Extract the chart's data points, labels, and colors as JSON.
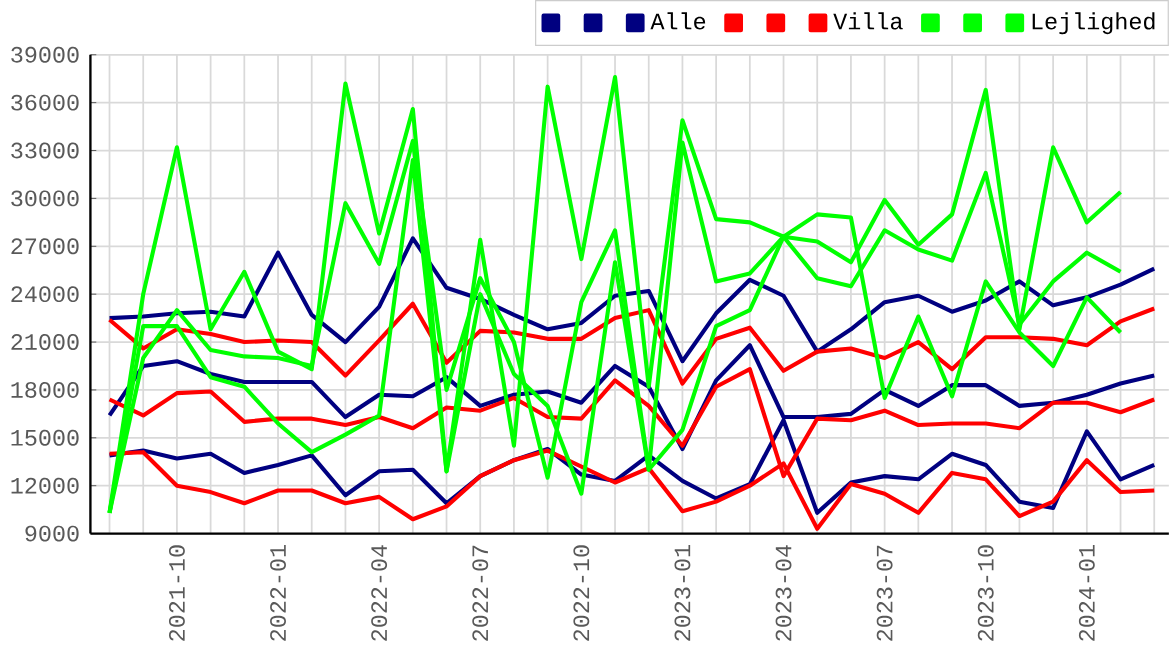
{
  "chart_data": {
    "type": "line",
    "legend": "top right",
    "grid": true,
    "line_style": "solid",
    "marker": "none",
    "x": [
      "2021-08",
      "2021-09",
      "2021-10",
      "2021-11",
      "2021-12",
      "2022-01",
      "2022-02",
      "2022-03",
      "2022-04",
      "2022-05",
      "2022-06",
      "2022-07",
      "2022-08",
      "2022-09",
      "2022-10",
      "2022-11",
      "2022-12",
      "2023-01",
      "2023-02",
      "2023-03",
      "2023-04",
      "2023-05",
      "2023-06",
      "2023-07",
      "2023-08",
      "2023-09",
      "2023-10",
      "2023-11",
      "2023-12",
      "2024-01",
      "2024-02",
      "2024-03"
    ],
    "xlim": [
      "2021-07-14",
      "2024-03-14"
    ],
    "xticks": [
      {
        "value": "2021-08",
        "label": null
      },
      {
        "value": "2021-09",
        "label": null
      },
      "2021-10",
      {
        "value": "2021-11",
        "label": null
      },
      {
        "value": "2021-12",
        "label": null
      },
      "2022-01",
      {
        "value": "2022-02",
        "label": null
      },
      {
        "value": "2022-03",
        "label": null
      },
      "2022-04",
      {
        "value": "2022-05",
        "label": null
      },
      {
        "value": "2022-06",
        "label": null
      },
      "2022-07",
      {
        "value": "2022-08",
        "label": null
      },
      {
        "value": "2022-09",
        "label": null
      },
      "2022-10",
      {
        "value": "2022-11",
        "label": null
      },
      {
        "value": "2022-12",
        "label": null
      },
      "2023-01",
      {
        "value": "2023-02",
        "label": null
      },
      {
        "value": "2023-03",
        "label": null
      },
      "2023-04",
      {
        "value": "2023-05",
        "label": null
      },
      {
        "value": "2023-06",
        "label": null
      },
      "2023-07",
      {
        "value": "2023-08",
        "label": null
      },
      {
        "value": "2023-09",
        "label": null
      },
      "2023-10",
      {
        "value": "2023-11",
        "label": null
      },
      {
        "value": "2023-12",
        "label": null
      },
      "2024-01",
      {
        "value": "2024-02",
        "label": null
      },
      {
        "value": "2024-03",
        "label": null
      }
    ],
    "ylim": [
      9000,
      39000
    ],
    "yticks": [
      9000,
      12000,
      15000,
      18000,
      21000,
      24000,
      27000,
      30000,
      33000,
      36000,
      39000
    ],
    "series": [
      {
        "color": "#000080",
        "values": [
          22500,
          22600,
          22800,
          22900,
          22600,
          26600,
          22700,
          21000,
          23200,
          27500,
          24400,
          23700,
          22700,
          21800,
          22200,
          23900,
          24200,
          19800,
          22800,
          24900,
          23900,
          20400,
          21800,
          23500,
          23900,
          22900,
          23600,
          24800,
          23300,
          23800,
          24600,
          25600
        ]
      },
      {
        "color": "#000080",
        "values": [
          16400,
          19500,
          19800,
          19000,
          18500,
          18500,
          18500,
          16300,
          17700,
          17600,
          18800,
          17000,
          17700,
          17900,
          17200,
          19500,
          18200,
          14300,
          18600,
          20800,
          16300,
          16300,
          16500,
          18000,
          17000,
          18300,
          18300,
          17000,
          17200,
          17700,
          18400,
          18900
        ]
      },
      {
        "name": "Alle",
        "color": "#000080",
        "values": [
          13900,
          14200,
          13700,
          14000,
          12800,
          13300,
          13900,
          11400,
          12900,
          13000,
          10900,
          12600,
          13600,
          14300,
          12700,
          12300,
          13900,
          12300,
          11200,
          12100,
          16100,
          10300,
          12200,
          12600,
          12400,
          14000,
          13300,
          11000,
          10600,
          15400,
          12400,
          13300
        ]
      },
      {
        "color": "#ff0000",
        "values": [
          22400,
          20600,
          21800,
          21500,
          21000,
          21100,
          21000,
          18900,
          21100,
          23400,
          19700,
          21700,
          21600,
          21200,
          21200,
          22500,
          23000,
          18400,
          21200,
          21900,
          19200,
          20400,
          20600,
          20000,
          21000,
          19300,
          21300,
          21300,
          21200,
          20800,
          22300,
          23100
        ]
      },
      {
        "color": "#ff0000",
        "values": [
          17400,
          16400,
          17800,
          17900,
          16000,
          16200,
          16200,
          15800,
          16300,
          15600,
          16900,
          16700,
          17500,
          16300,
          16200,
          18600,
          17000,
          14500,
          18200,
          19300,
          12600,
          16200,
          16100,
          16700,
          15800,
          15900,
          15900,
          15600,
          17200,
          17200,
          16600,
          17400
        ]
      },
      {
        "name": "Villa",
        "color": "#ff0000",
        "values": [
          14000,
          14100,
          12000,
          11600,
          10900,
          11700,
          11700,
          10900,
          11300,
          9900,
          10700,
          12600,
          13600,
          14200,
          13200,
          12200,
          13100,
          10400,
          11000,
          12000,
          13400,
          9300,
          12100,
          11500,
          10300,
          12800,
          12400,
          10100,
          11000,
          13600,
          11600,
          11700
        ]
      },
      {
        "color": "#00ff00",
        "values": [
          10300,
          24000,
          33200,
          21800,
          25400,
          20400,
          19300,
          37200,
          27800,
          35600,
          12900,
          27400,
          14500,
          37000,
          26200,
          37600,
          18200,
          34900,
          28700,
          28500,
          27600,
          27300,
          26000,
          29900,
          27100,
          29000,
          36800,
          21800,
          33200,
          28500,
          30400,
          null
        ]
      },
      {
        "color": "#00ff00",
        "values": [
          10300,
          20000,
          23000,
          20500,
          20100,
          20000,
          19500,
          29700,
          25900,
          33600,
          18000,
          25000,
          21000,
          12500,
          23500,
          28000,
          13000,
          33500,
          24800,
          25300,
          27600,
          25000,
          24500,
          28000,
          26800,
          26100,
          31600,
          22100,
          24800,
          26600,
          25400,
          null
        ]
      },
      {
        "name": "Lejlighed",
        "color": "#00ff00",
        "values": [
          10300,
          22000,
          22000,
          18800,
          18200,
          15900,
          14100,
          15200,
          16400,
          32400,
          12900,
          24000,
          19000,
          17000,
          11500,
          26000,
          13000,
          15500,
          22000,
          23000,
          27600,
          29000,
          28800,
          17500,
          22600,
          17600,
          24800,
          21600,
          19500,
          23800,
          21600,
          null
        ]
      }
    ]
  }
}
